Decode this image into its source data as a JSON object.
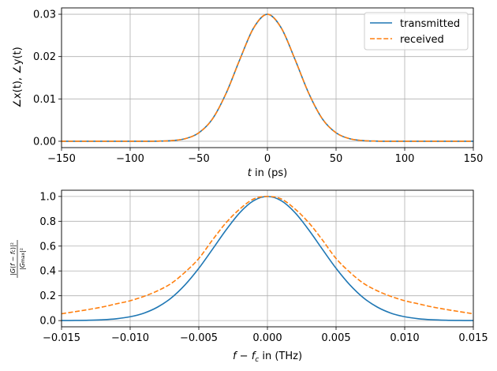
{
  "chart_data": [
    {
      "type": "line",
      "xlabel": "t in (ps)",
      "ylabel": "∠x(t), ∠y(t)",
      "xlim": [
        -150,
        150
      ],
      "ylim": [
        -0.0015,
        0.0315
      ],
      "xticks": [
        "−150",
        "−100",
        "−50",
        "0",
        "50",
        "100",
        "150"
      ],
      "xtick_values": [
        -150,
        -100,
        -50,
        0,
        50,
        100,
        150
      ],
      "yticks": [
        "0.00",
        "0.01",
        "0.02",
        "0.03"
      ],
      "ytick_values": [
        0,
        0.01,
        0.02,
        0.03
      ],
      "grid": true,
      "legend_position": "top-right",
      "x": [
        -150,
        -140,
        -130,
        -120,
        -110,
        -100,
        -90,
        -80,
        -70,
        -60,
        -50,
        -40,
        -30,
        -20,
        -10,
        0,
        10,
        20,
        30,
        40,
        50,
        60,
        70,
        80,
        90,
        100,
        110,
        120,
        130,
        140,
        150
      ],
      "series": [
        {
          "name": "transmitted",
          "color": "#1f77b4",
          "style": "solid",
          "values": [
            0,
            0,
            0,
            0,
            0,
            0,
            0,
            3e-05,
            0.00015,
            0.0006,
            0.002,
            0.0053,
            0.0114,
            0.0194,
            0.0268,
            0.03,
            0.0268,
            0.0194,
            0.0114,
            0.0053,
            0.002,
            0.0006,
            0.00015,
            3e-05,
            0,
            0,
            0,
            0,
            0,
            0,
            0
          ]
        },
        {
          "name": "received",
          "color": "#ff7f0e",
          "style": "dashed",
          "values": [
            0,
            0,
            0,
            0,
            0,
            0,
            0,
            3e-05,
            0.00015,
            0.0006,
            0.002,
            0.0053,
            0.0114,
            0.0194,
            0.0268,
            0.03,
            0.0268,
            0.0194,
            0.0114,
            0.0053,
            0.002,
            0.0006,
            0.00015,
            3e-05,
            0,
            0,
            0,
            0,
            0,
            0,
            0
          ]
        }
      ]
    },
    {
      "type": "line",
      "xlabel": "f − f_c in (THz)",
      "ylabel": "|G(f − f_c)|² / |G_max|²",
      "xlim": [
        -0.015,
        0.015
      ],
      "ylim": [
        -0.05,
        1.05
      ],
      "xticks": [
        "−0.015",
        "−0.010",
        "−0.005",
        "0.000",
        "0.005",
        "0.010",
        "0.015"
      ],
      "xtick_values": [
        -0.015,
        -0.01,
        -0.005,
        0,
        0.005,
        0.01,
        0.015
      ],
      "yticks": [
        "0.0",
        "0.2",
        "0.4",
        "0.6",
        "0.8",
        "1.0"
      ],
      "ytick_values": [
        0,
        0.2,
        0.4,
        0.6,
        0.8,
        1.0
      ],
      "grid": true,
      "x": [
        -0.015,
        -0.014,
        -0.013,
        -0.012,
        -0.011,
        -0.01,
        -0.009,
        -0.008,
        -0.007,
        -0.006,
        -0.005,
        -0.004,
        -0.003,
        -0.002,
        -0.001,
        0,
        0.001,
        0.002,
        0.003,
        0.004,
        0.005,
        0.006,
        0.007,
        0.008,
        0.009,
        0.01,
        0.011,
        0.012,
        0.013,
        0.014,
        0.015
      ],
      "series": [
        {
          "name": "transmitted",
          "color": "#1f77b4",
          "style": "solid",
          "values": [
            0.0004,
            0.0011,
            0.0029,
            0.0068,
            0.015,
            0.031,
            0.06,
            0.109,
            0.183,
            0.288,
            0.421,
            0.575,
            0.732,
            0.871,
            0.966,
            1.0,
            0.966,
            0.871,
            0.732,
            0.575,
            0.421,
            0.288,
            0.183,
            0.109,
            0.06,
            0.031,
            0.015,
            0.0068,
            0.0029,
            0.0011,
            0.0004
          ]
        },
        {
          "name": "received",
          "color": "#ff7f0e",
          "style": "dashed",
          "values": [
            0.055,
            0.072,
            0.09,
            0.11,
            0.135,
            0.16,
            0.195,
            0.24,
            0.3,
            0.39,
            0.5,
            0.65,
            0.79,
            0.9,
            0.98,
            1.0,
            0.98,
            0.9,
            0.79,
            0.65,
            0.5,
            0.39,
            0.3,
            0.24,
            0.195,
            0.16,
            0.135,
            0.11,
            0.09,
            0.072,
            0.055
          ]
        }
      ]
    }
  ]
}
